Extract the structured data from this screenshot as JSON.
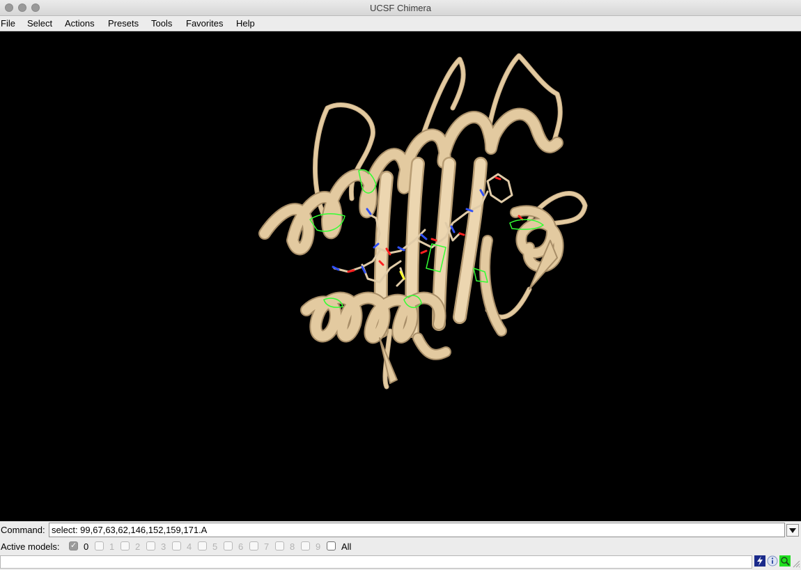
{
  "window": {
    "title": "UCSF Chimera"
  },
  "menu": [
    "File",
    "Select",
    "Actions",
    "Presets",
    "Tools",
    "Favorites",
    "Help"
  ],
  "command": {
    "label": "Command:",
    "value": "select: 99,67,63,62,146,152,159,171.A"
  },
  "active_models": {
    "label": "Active models:",
    "models": [
      {
        "label": "0",
        "checked": true
      },
      {
        "label": "1",
        "checked": false
      },
      {
        "label": "2",
        "checked": false
      },
      {
        "label": "3",
        "checked": false
      },
      {
        "label": "4",
        "checked": false
      },
      {
        "label": "5",
        "checked": false
      },
      {
        "label": "6",
        "checked": false
      },
      {
        "label": "7",
        "checked": false
      },
      {
        "label": "8",
        "checked": false
      },
      {
        "label": "9",
        "checked": false
      }
    ],
    "all_label": "All"
  },
  "status": {
    "text": ""
  },
  "colors": {
    "ribbon": "#e3caa0",
    "selection": "#33ff33",
    "background": "#000000"
  },
  "icons": [
    "lightning-icon",
    "info-icon",
    "magnifier-icon"
  ]
}
